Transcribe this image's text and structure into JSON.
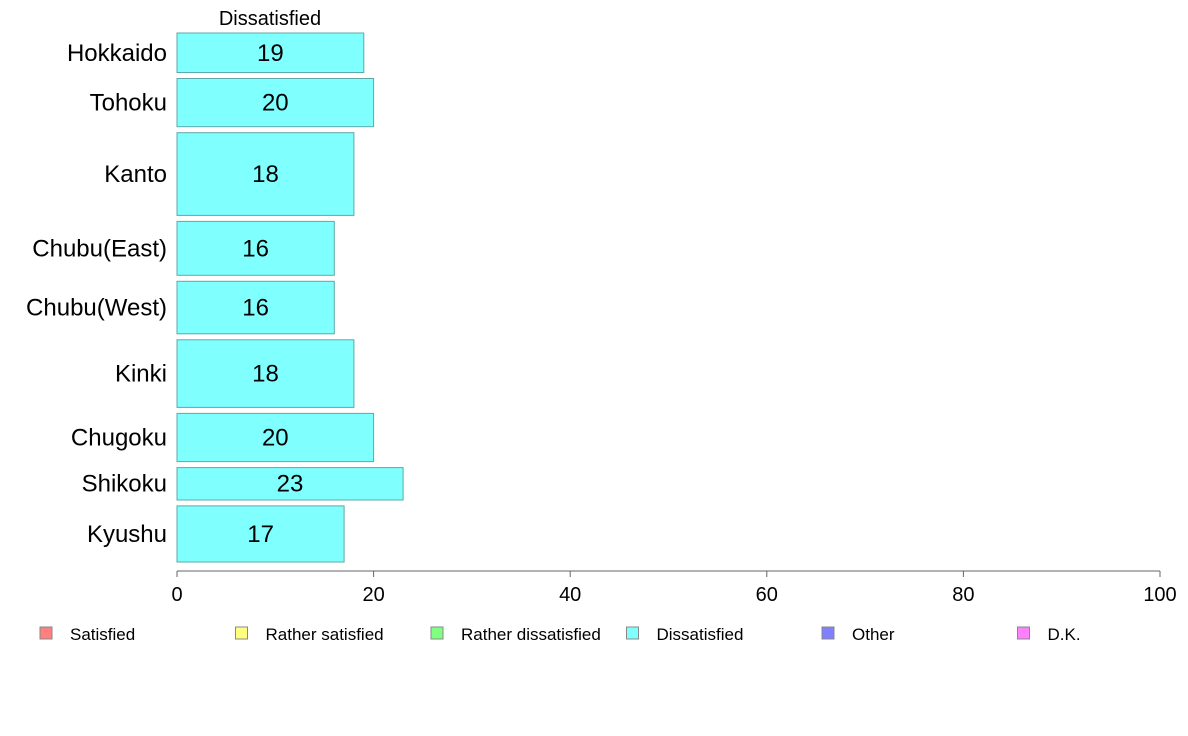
{
  "chart_data": {
    "type": "bar",
    "orientation": "horizontal",
    "title": "Dissatisfied",
    "categories": [
      "Hokkaido",
      "Tohoku",
      "Kanto",
      "Chubu(East)",
      "Chubu(West)",
      "Kinki",
      "Chugoku",
      "Shikoku",
      "Kyushu"
    ],
    "relative_band_widths": [
      5.5,
      6.7,
      11.5,
      7.5,
      7.3,
      9.4,
      6.7,
      4.5,
      7.8
    ],
    "series": [
      {
        "name": "Dissatisfied",
        "values": [
          19,
          20,
          18,
          16,
          16,
          18,
          20,
          23,
          17
        ],
        "color": "#80ffff"
      }
    ],
    "data_labels": [
      "19",
      "20",
      "18",
      "16",
      "16",
      "18",
      "20",
      "23",
      "17"
    ],
    "xlim": [
      0,
      100
    ],
    "x_ticks": [
      0,
      20,
      40,
      60,
      80,
      100
    ],
    "x_tick_labels": [
      "0",
      "20",
      "40",
      "60",
      "80",
      "100"
    ],
    "grid": false,
    "legend_position": "bottom",
    "legend": [
      {
        "label": "Satisfied",
        "color": "#ff8080"
      },
      {
        "label": "Rather satisfied",
        "color": "#ffff80"
      },
      {
        "label": "Rather dissatisfied",
        "color": "#80ff80"
      },
      {
        "label": "Dissatisfied",
        "color": "#80ffff"
      },
      {
        "label": "Other",
        "color": "#8080ff"
      },
      {
        "label": "D.K.",
        "color": "#ff80ff"
      }
    ]
  }
}
